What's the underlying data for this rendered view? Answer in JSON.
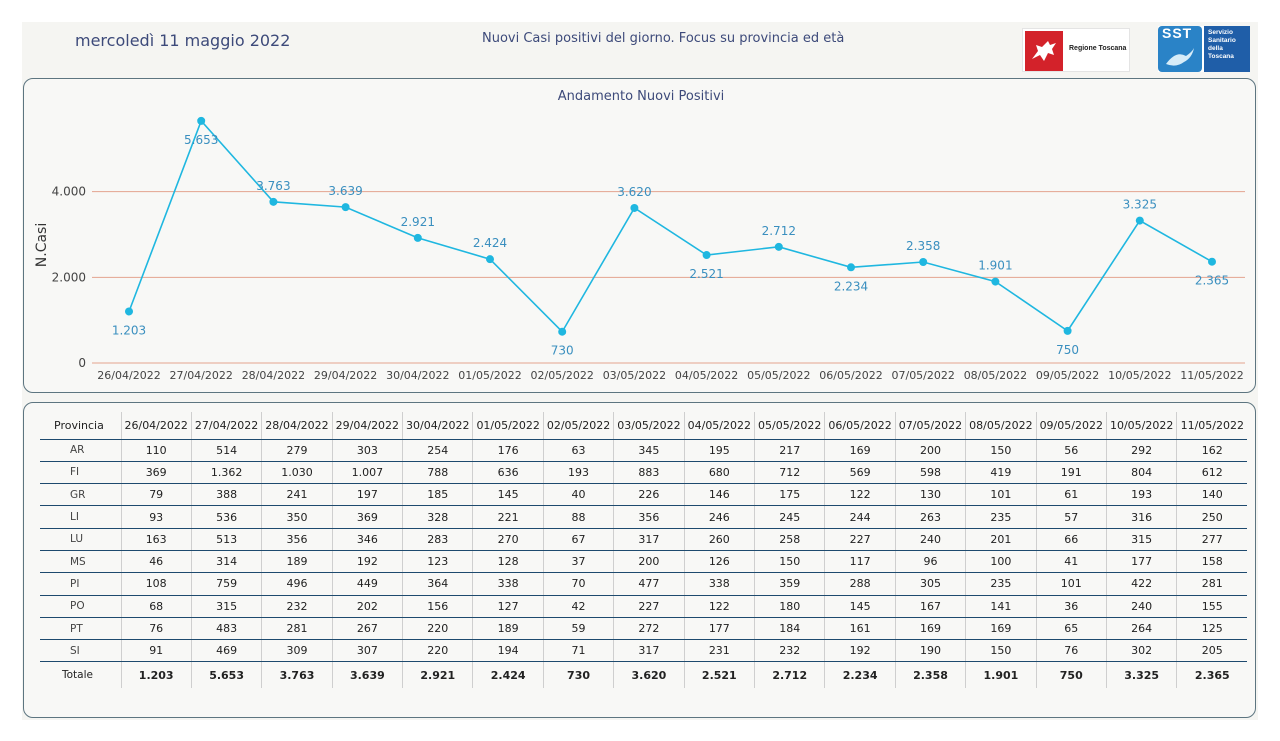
{
  "header": {
    "date": "mercoledì 11 maggio 2022",
    "subtitle": "Nuovi Casi positivi del giorno. Focus su provincia ed età",
    "logo_regione": "Regione Toscana",
    "logo_sst_short": "SST",
    "logo_sst_lines": [
      "Servizio",
      "Sanitario",
      "della",
      "Toscana"
    ]
  },
  "colors": {
    "line": "#1fb7e0",
    "gridline": "#e3a38f",
    "label": "#3a8fbf",
    "border": "#5d7580"
  },
  "chart_data": {
    "type": "line",
    "title": "Andamento Nuovi Positivi",
    "ylabel": "N.Casi",
    "xlabel": "",
    "ylim": [
      0,
      6000
    ],
    "yticks": [
      0,
      2000,
      4000
    ],
    "ytick_labels": [
      "0",
      "2.000",
      "4.000"
    ],
    "grid": "horizontal",
    "categories": [
      "26/04/2022",
      "27/04/2022",
      "28/04/2022",
      "29/04/2022",
      "30/04/2022",
      "01/05/2022",
      "02/05/2022",
      "03/05/2022",
      "04/05/2022",
      "05/05/2022",
      "06/05/2022",
      "07/05/2022",
      "08/05/2022",
      "09/05/2022",
      "10/05/2022",
      "11/05/2022"
    ],
    "series": [
      {
        "values": [
          1203,
          5653,
          3763,
          3639,
          2921,
          2424,
          730,
          3620,
          2521,
          2712,
          2234,
          2358,
          1901,
          750,
          3325,
          2365
        ],
        "labels": [
          "1.203",
          "5.653",
          "3.763",
          "3.639",
          "2.921",
          "2.424",
          "730",
          "3.620",
          "2.521",
          "2.712",
          "2.234",
          "2.358",
          "1.901",
          "750",
          "3.325",
          "2.365"
        ],
        "label_pos": [
          "below",
          "below",
          "above",
          "above",
          "above",
          "above",
          "below",
          "above",
          "below",
          "above",
          "below",
          "above",
          "above",
          "below",
          "above",
          "below"
        ]
      }
    ]
  },
  "table": {
    "header_label": "Provincia",
    "dates": [
      "26/04/2022",
      "27/04/2022",
      "28/04/2022",
      "29/04/2022",
      "30/04/2022",
      "01/05/2022",
      "02/05/2022",
      "03/05/2022",
      "04/05/2022",
      "05/05/2022",
      "06/05/2022",
      "07/05/2022",
      "08/05/2022",
      "09/05/2022",
      "10/05/2022",
      "11/05/2022"
    ],
    "rows": [
      {
        "prov": "AR",
        "values": [
          "110",
          "514",
          "279",
          "303",
          "254",
          "176",
          "63",
          "345",
          "195",
          "217",
          "169",
          "200",
          "150",
          "56",
          "292",
          "162"
        ]
      },
      {
        "prov": "FI",
        "values": [
          "369",
          "1.362",
          "1.030",
          "1.007",
          "788",
          "636",
          "193",
          "883",
          "680",
          "712",
          "569",
          "598",
          "419",
          "191",
          "804",
          "612"
        ]
      },
      {
        "prov": "GR",
        "values": [
          "79",
          "388",
          "241",
          "197",
          "185",
          "145",
          "40",
          "226",
          "146",
          "175",
          "122",
          "130",
          "101",
          "61",
          "193",
          "140"
        ]
      },
      {
        "prov": "LI",
        "values": [
          "93",
          "536",
          "350",
          "369",
          "328",
          "221",
          "88",
          "356",
          "246",
          "245",
          "244",
          "263",
          "235",
          "57",
          "316",
          "250"
        ]
      },
      {
        "prov": "LU",
        "values": [
          "163",
          "513",
          "356",
          "346",
          "283",
          "270",
          "67",
          "317",
          "260",
          "258",
          "227",
          "240",
          "201",
          "66",
          "315",
          "277"
        ]
      },
      {
        "prov": "MS",
        "values": [
          "46",
          "314",
          "189",
          "192",
          "123",
          "128",
          "37",
          "200",
          "126",
          "150",
          "117",
          "96",
          "100",
          "41",
          "177",
          "158"
        ]
      },
      {
        "prov": "PI",
        "values": [
          "108",
          "759",
          "496",
          "449",
          "364",
          "338",
          "70",
          "477",
          "338",
          "359",
          "288",
          "305",
          "235",
          "101",
          "422",
          "281"
        ]
      },
      {
        "prov": "PO",
        "values": [
          "68",
          "315",
          "232",
          "202",
          "156",
          "127",
          "42",
          "227",
          "122",
          "180",
          "145",
          "167",
          "141",
          "36",
          "240",
          "155"
        ]
      },
      {
        "prov": "PT",
        "values": [
          "76",
          "483",
          "281",
          "267",
          "220",
          "189",
          "59",
          "272",
          "177",
          "184",
          "161",
          "169",
          "169",
          "65",
          "264",
          "125"
        ]
      },
      {
        "prov": "SI",
        "values": [
          "91",
          "469",
          "309",
          "307",
          "220",
          "194",
          "71",
          "317",
          "231",
          "232",
          "192",
          "190",
          "150",
          "76",
          "302",
          "205"
        ]
      }
    ],
    "total": {
      "prov": "Totale",
      "values": [
        "1.203",
        "5.653",
        "3.763",
        "3.639",
        "2.921",
        "2.424",
        "730",
        "3.620",
        "2.521",
        "2.712",
        "2.234",
        "2.358",
        "1.901",
        "750",
        "3.325",
        "2.365"
      ]
    }
  }
}
